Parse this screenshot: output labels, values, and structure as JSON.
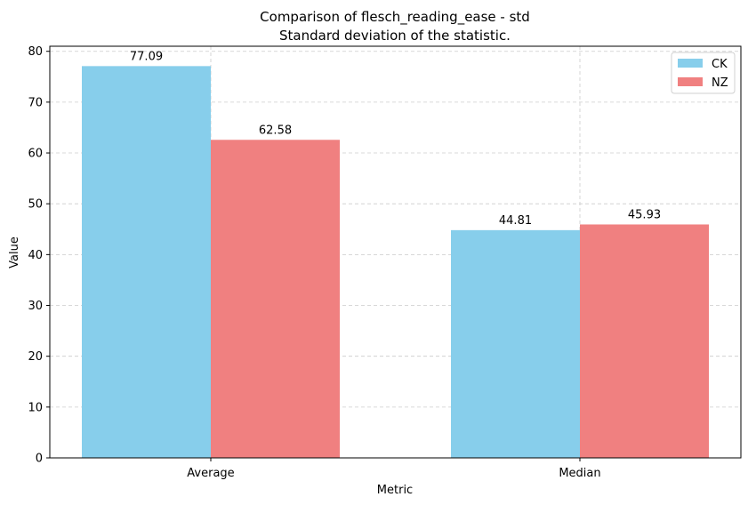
{
  "chart_data": {
    "type": "bar",
    "title": "Comparison of flesch_reading_ease - std",
    "subtitle": "Standard deviation of the statistic.",
    "xlabel": "Metric",
    "ylabel": "Value",
    "categories": [
      "Average",
      "Median"
    ],
    "series": [
      {
        "name": "CK",
        "color": "#87CEEB",
        "values": [
          77.09,
          44.81
        ]
      },
      {
        "name": "NZ",
        "color": "#F08080",
        "values": [
          62.58,
          45.93
        ]
      }
    ],
    "data_labels": [
      [
        "77.09",
        "44.81"
      ],
      [
        "62.58",
        "45.93"
      ]
    ],
    "ylim": [
      0,
      81
    ],
    "yticks": [
      0,
      10,
      20,
      30,
      40,
      50,
      60,
      70,
      80
    ],
    "grid": true,
    "legend_position": "top-right"
  }
}
